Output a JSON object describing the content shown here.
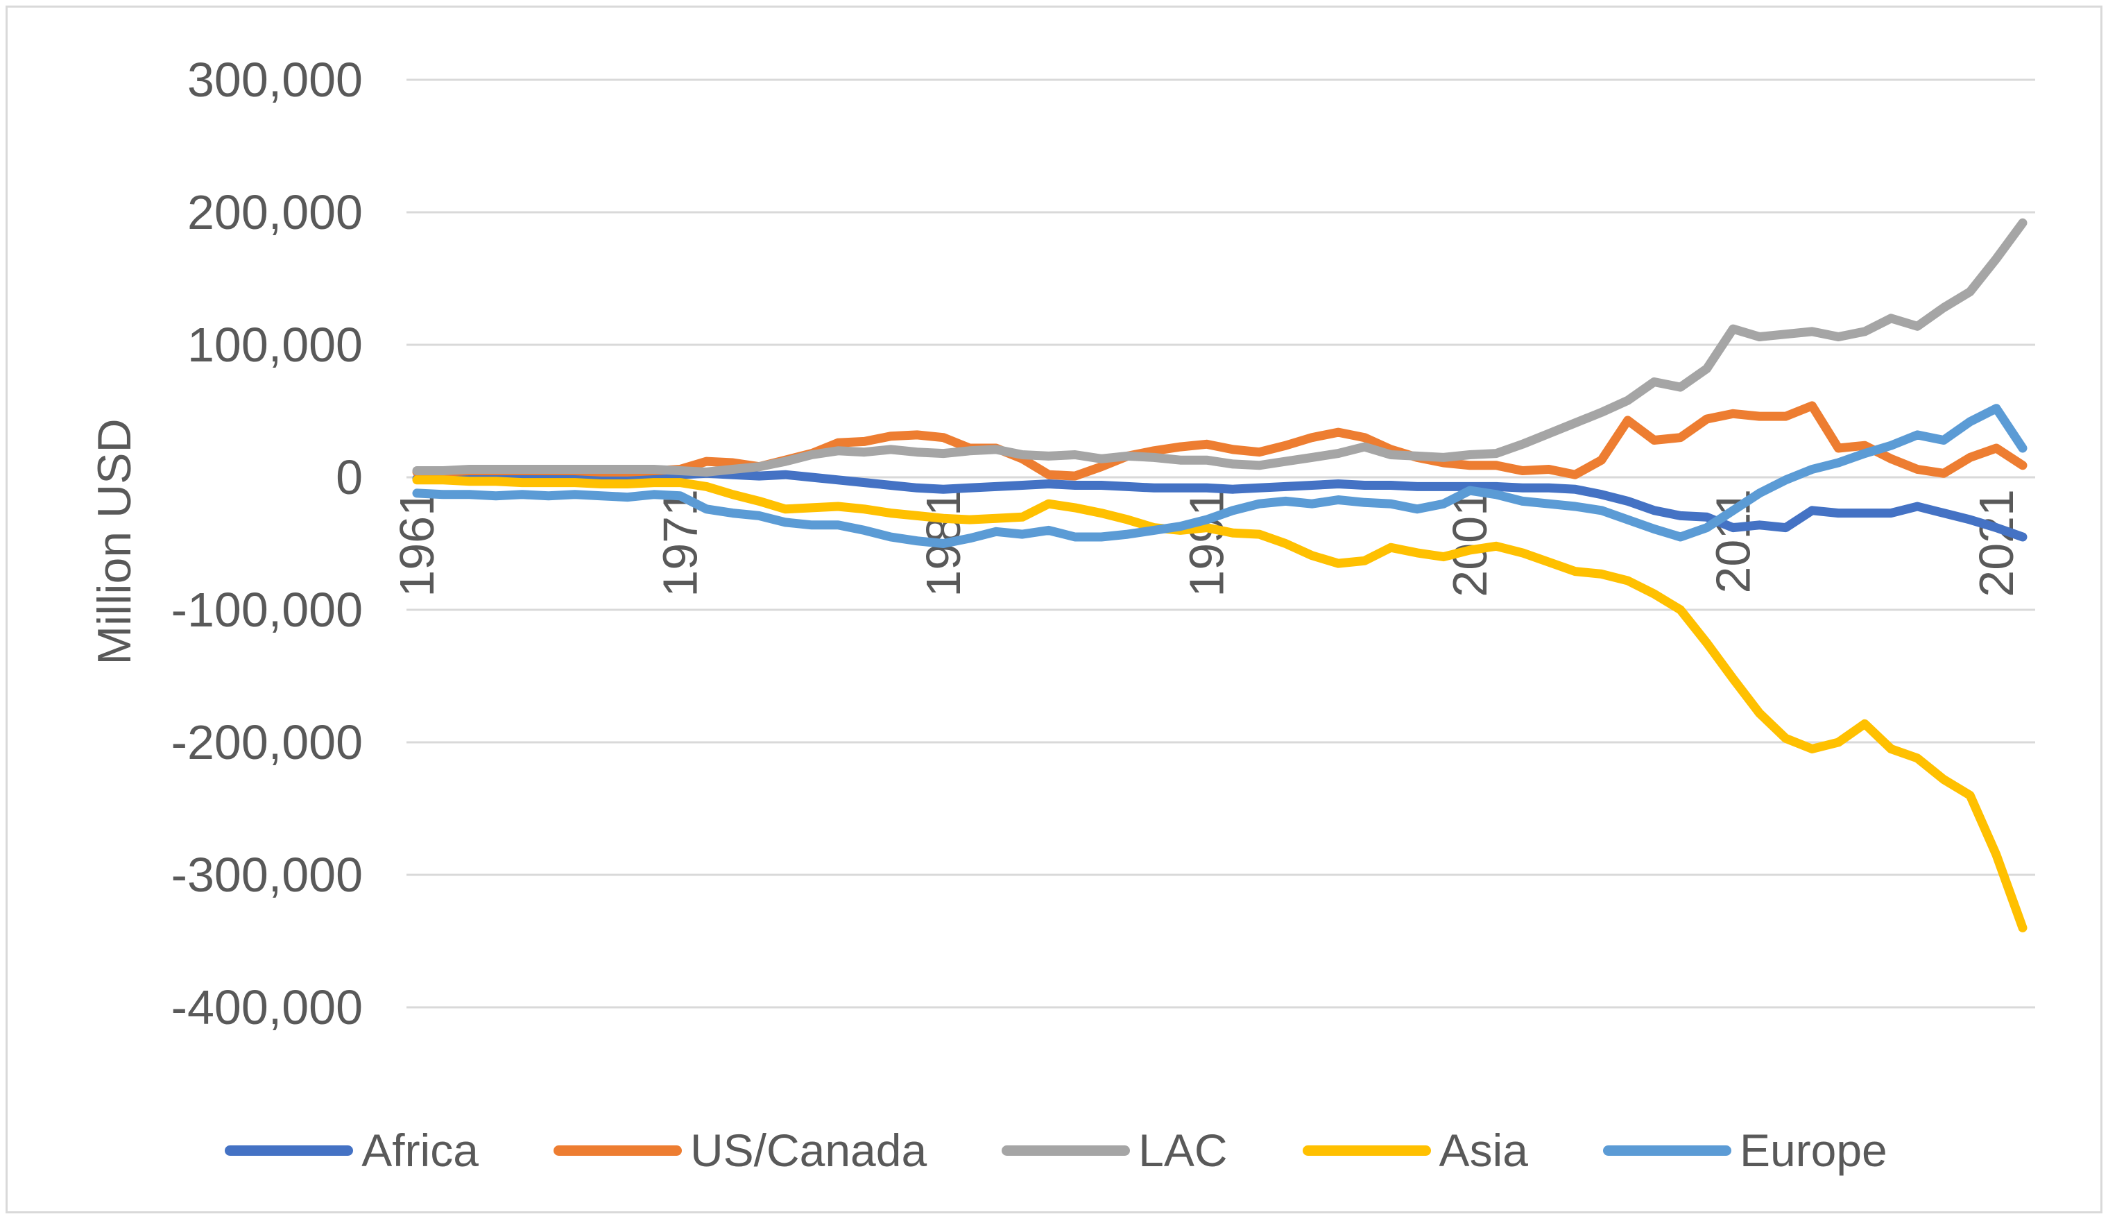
{
  "figure": {
    "background_color": "#ffffff",
    "border_color": "#d9d9d9"
  },
  "chart": {
    "ylabel": "Million USD"
  },
  "chart_data": {
    "type": "line",
    "title": "",
    "xlabel": "",
    "ylabel": "Million USD",
    "ylim": [
      -400000,
      300000
    ],
    "grid": "horizontal",
    "gridline_color": "#d9d9d9",
    "text_color": "#595959",
    "legend_position": "bottom",
    "y_tick_labels": [
      "300,000",
      "200,000",
      "100,000",
      "0",
      "-100,000",
      "-200,000",
      "-300,000",
      "-400,000"
    ],
    "y_tick_values": [
      300000,
      200000,
      100000,
      0,
      -100000,
      -200000,
      -300000,
      -400000
    ],
    "x_tick_years": [
      1961,
      1971,
      1981,
      1991,
      2001,
      2011,
      2021
    ],
    "x_years": [
      1961,
      1962,
      1963,
      1964,
      1965,
      1966,
      1967,
      1968,
      1969,
      1970,
      1971,
      1972,
      1973,
      1974,
      1975,
      1976,
      1977,
      1978,
      1979,
      1980,
      1981,
      1982,
      1983,
      1984,
      1985,
      1986,
      1987,
      1988,
      1989,
      1990,
      1991,
      1992,
      1993,
      1994,
      1995,
      1996,
      1997,
      1998,
      1999,
      2000,
      2001,
      2002,
      2003,
      2004,
      2005,
      2006,
      2007,
      2008,
      2009,
      2010,
      2011,
      2012,
      2013,
      2014,
      2015,
      2016,
      2017,
      2018,
      2019,
      2020,
      2021,
      2022
    ],
    "series": [
      {
        "name": "Africa",
        "color": "#4472C4",
        "values": [
          -1000,
          -1000,
          0,
          0,
          0,
          -1000,
          -1000,
          -1000,
          -1000,
          0,
          2000,
          3000,
          2000,
          1000,
          2000,
          0,
          -2000,
          -4000,
          -6000,
          -8000,
          -9000,
          -8000,
          -7000,
          -6000,
          -5000,
          -6000,
          -6000,
          -7000,
          -8000,
          -8000,
          -8000,
          -9000,
          -8000,
          -7000,
          -6000,
          -5000,
          -6000,
          -6000,
          -7000,
          -7000,
          -7000,
          -7000,
          -8000,
          -8000,
          -9000,
          -13000,
          -18000,
          -25000,
          -29000,
          -30000,
          -38000,
          -36000,
          -38000,
          -25000,
          -27000,
          -27000,
          -27000,
          -22000,
          -27000,
          -32000,
          -38000,
          -45000
        ]
      },
      {
        "name": "US/Canada",
        "color": "#ED7D31",
        "values": [
          4000,
          4000,
          5000,
          5000,
          5000,
          5000,
          5000,
          4000,
          4000,
          5000,
          6000,
          12000,
          11000,
          8000,
          13000,
          18000,
          26000,
          27000,
          31000,
          32000,
          30000,
          22000,
          22000,
          14000,
          2000,
          1000,
          8000,
          16000,
          20000,
          23000,
          25000,
          21000,
          19000,
          24000,
          30000,
          34000,
          30000,
          21000,
          15000,
          11000,
          9000,
          9000,
          5000,
          6000,
          2000,
          13000,
          43000,
          28000,
          30000,
          44000,
          48000,
          46000,
          46000,
          54000,
          22000,
          24000,
          14000,
          6000,
          3000,
          15000,
          22000,
          9000
        ]
      },
      {
        "name": "LAC",
        "color": "#A5A5A5",
        "values": [
          5000,
          5000,
          6000,
          6000,
          6000,
          6000,
          6000,
          6000,
          6000,
          6000,
          5000,
          4000,
          6000,
          8000,
          12000,
          17000,
          20000,
          19000,
          21000,
          19000,
          18000,
          20000,
          21000,
          17000,
          16000,
          17000,
          14000,
          16000,
          15000,
          13000,
          13000,
          10000,
          9000,
          12000,
          15000,
          18000,
          23000,
          17000,
          16000,
          15000,
          17000,
          18000,
          25000,
          33000,
          41000,
          49000,
          58000,
          72000,
          68000,
          82000,
          112000,
          106000,
          108000,
          110000,
          106000,
          110000,
          120000,
          114000,
          128000,
          140000,
          165000,
          192000
        ]
      },
      {
        "name": "Asia",
        "color": "#FFC000",
        "values": [
          -2000,
          -2000,
          -3000,
          -3000,
          -4000,
          -4000,
          -4000,
          -5000,
          -5000,
          -4000,
          -4000,
          -7000,
          -13000,
          -18000,
          -24000,
          -23000,
          -22000,
          -24000,
          -27000,
          -29000,
          -31000,
          -32000,
          -31000,
          -30000,
          -20000,
          -23000,
          -27000,
          -32000,
          -38000,
          -40000,
          -38000,
          -42000,
          -43000,
          -50000,
          -59000,
          -65000,
          -63000,
          -53000,
          -57000,
          -60000,
          -55000,
          -52000,
          -57000,
          -64000,
          -71000,
          -73000,
          -78000,
          -88000,
          -100000,
          -125000,
          -152000,
          -178000,
          -197000,
          -205000,
          -200000,
          -186000,
          -205000,
          -212000,
          -228000,
          -240000,
          -285000,
          -340000
        ]
      },
      {
        "name": "Europe",
        "color": "#5B9BD5",
        "values": [
          -12000,
          -13000,
          -13000,
          -14000,
          -13000,
          -14000,
          -13000,
          -14000,
          -15000,
          -13000,
          -14000,
          -24000,
          -27000,
          -29000,
          -34000,
          -36000,
          -36000,
          -40000,
          -45000,
          -48000,
          -50000,
          -46000,
          -41000,
          -43000,
          -40000,
          -45000,
          -45000,
          -43000,
          -40000,
          -37000,
          -32000,
          -25000,
          -20000,
          -18000,
          -20000,
          -17000,
          -19000,
          -20000,
          -24000,
          -20000,
          -10000,
          -13000,
          -18000,
          -20000,
          -22000,
          -25000,
          -32000,
          -39000,
          -45000,
          -38000,
          -25000,
          -12000,
          -2000,
          6000,
          11000,
          18000,
          24000,
          32000,
          28000,
          42000,
          52000,
          22000
        ]
      }
    ]
  }
}
